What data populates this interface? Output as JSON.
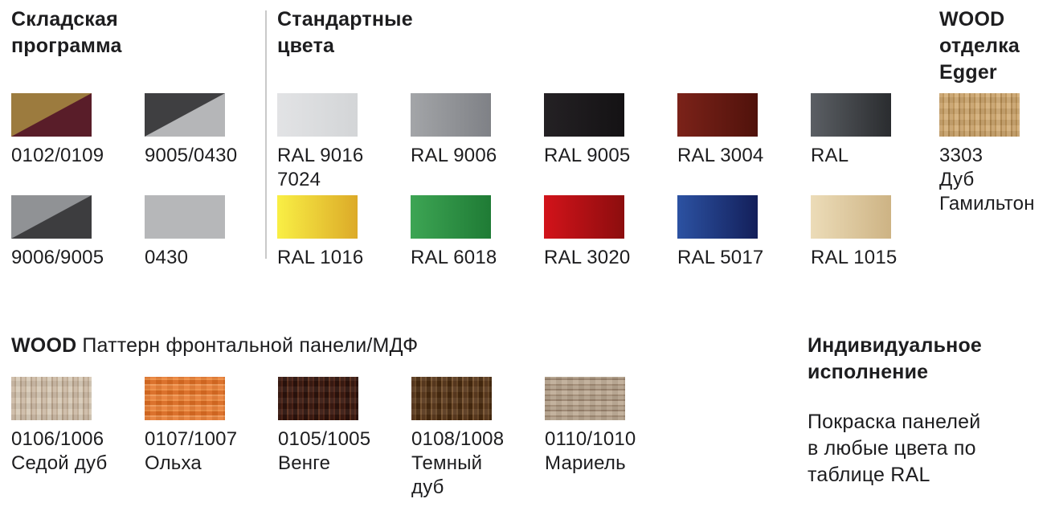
{
  "page": {
    "background": "#ffffff",
    "text_color": "#1d1d1f",
    "divider_color": "#c9c9c9"
  },
  "sections": {
    "warehouse": {
      "title_lines": [
        "Складская",
        "программа"
      ],
      "swatches": [
        {
          "code": "0102/0109",
          "type": "diagonal",
          "colors": [
            "#9c7b3e",
            "#591d29"
          ]
        },
        {
          "code": "9005/0430",
          "type": "diagonal",
          "colors": [
            "#3f3f41",
            "#b5b6b8"
          ]
        },
        {
          "code": "9006/9005",
          "type": "diagonal",
          "colors": [
            "#909295",
            "#3d3d3f"
          ]
        },
        {
          "code": "0430",
          "type": "solid",
          "colors": [
            "#b6b7b9"
          ]
        }
      ]
    },
    "standard": {
      "title_lines": [
        "Стандартные",
        "цвета"
      ],
      "swatches": [
        {
          "code": "RAL 9016",
          "name_lines": [
            "7024"
          ],
          "type": "gradient",
          "colors": [
            "#e2e3e5",
            "#d3d5d7"
          ]
        },
        {
          "code": "RAL 9006",
          "type": "gradient",
          "colors": [
            "#a3a5a8",
            "#7f8186"
          ]
        },
        {
          "code": "RAL 9005",
          "type": "gradient",
          "colors": [
            "#242124",
            "#141214"
          ]
        },
        {
          "code": "RAL 3004",
          "type": "gradient",
          "colors": [
            "#7b2219",
            "#50120b"
          ]
        },
        {
          "code": "RAL",
          "type": "gradient",
          "colors": [
            "#5b5f64",
            "#2a2c2f"
          ]
        },
        {
          "code": "RAL 1016",
          "type": "gradient",
          "colors": [
            "#f9ef45",
            "#dcaa28"
          ]
        },
        {
          "code": "RAL 6018",
          "type": "gradient",
          "colors": [
            "#3da554",
            "#1f7b35"
          ]
        },
        {
          "code": "RAL 3020",
          "type": "gradient",
          "colors": [
            "#d2131a",
            "#8c0d0e"
          ]
        },
        {
          "code": "RAL 5017",
          "type": "gradient",
          "colors": [
            "#2c52a2",
            "#131f5a"
          ]
        },
        {
          "code": "RAL 1015",
          "type": "gradient",
          "colors": [
            "#ecdcb8",
            "#cdb384"
          ]
        }
      ]
    },
    "egger": {
      "title_lines": [
        "WOOD",
        "отделка",
        "Egger"
      ],
      "swatches": [
        {
          "code": "3303",
          "name_lines": [
            "Дуб",
            "Гамильтон"
          ],
          "type": "wood",
          "grain": "vertical",
          "colors": [
            "#c9a470",
            "#bc9258",
            "#d4b07c",
            "#b08850"
          ]
        }
      ]
    },
    "wood_pattern": {
      "title_bold": "WOOD",
      "title_rest": "Паттерн фронтальной панели/МДФ",
      "swatches": [
        {
          "code": "0106/1006",
          "name_lines": [
            "Седой дуб"
          ],
          "type": "wood",
          "grain": "vertical",
          "colors": [
            "#cdbca8",
            "#bfab94",
            "#d8cbb9",
            "#b5a089"
          ]
        },
        {
          "code": "0107/1007",
          "name_lines": [
            "Ольха"
          ],
          "type": "wood",
          "grain": "horizontal",
          "colors": [
            "#e8813a",
            "#f09a58",
            "#d96a22",
            "#ee8f46"
          ]
        },
        {
          "code": "0105/1005",
          "name_lines": [
            "Венге"
          ],
          "type": "wood",
          "grain": "vertical",
          "colors": [
            "#3a1a12",
            "#4e2417",
            "#2a120c",
            "#5c2f1c"
          ]
        },
        {
          "code": "0108/1008",
          "name_lines": [
            "Темный",
            "дуб"
          ],
          "type": "wood",
          "grain": "vertical",
          "colors": [
            "#5a3a20",
            "#6b4a29",
            "#46290f",
            "#7a5633"
          ]
        },
        {
          "code": "0110/1010",
          "name_lines": [
            "Мариель"
          ],
          "type": "wood",
          "grain": "horizontal",
          "colors": [
            "#b3a18c",
            "#a08a74",
            "#c0ae99",
            "#97816c"
          ]
        }
      ]
    },
    "custom": {
      "title_lines": [
        "Индивидуальное",
        "исполнение"
      ],
      "body_lines": [
        "Покраска панелей",
        "в любые цвета по",
        "таблице RAL"
      ]
    }
  }
}
